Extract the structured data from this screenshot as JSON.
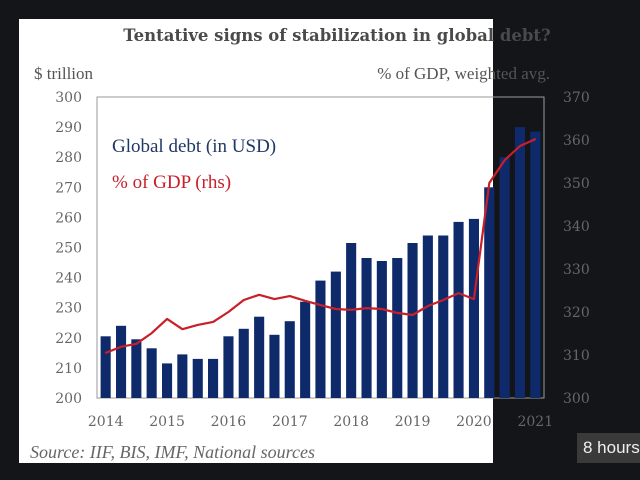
{
  "badge": {
    "text": "8 hours"
  },
  "source": "Source: IIF, BIS, IMF, National sources",
  "colors": {
    "bars": "#0e2a6b",
    "line": "#c8202a",
    "background": "#141519",
    "card": "#ffffff"
  },
  "chart_data": {
    "type": "bar+line",
    "title": "Tentative signs of stabilization in global debt?",
    "ylabel_left": "$ trillion",
    "ylabel_right": "% of GDP, weighted avg.",
    "ylim_left": [
      200,
      300
    ],
    "ylim_right": [
      300,
      370
    ],
    "yticks_left": [
      "300",
      "290",
      "280",
      "270",
      "260",
      "250",
      "240",
      "230",
      "220",
      "210",
      "200"
    ],
    "yticks_right": [
      "370",
      "360",
      "350",
      "340",
      "330",
      "320",
      "310",
      "300"
    ],
    "xtick_labels": [
      "2014",
      "2015",
      "2016",
      "2017",
      "2018",
      "2019",
      "2020",
      "2021"
    ],
    "legend": [
      {
        "name": "Global debt (in USD)",
        "type": "bar",
        "placement": "top-left"
      },
      {
        "name": "% of GDP (rhs)",
        "type": "line",
        "placement": "top-left"
      }
    ],
    "categories": [
      "2014Q1",
      "2014Q2",
      "2014Q3",
      "2014Q4",
      "2015Q1",
      "2015Q2",
      "2015Q3",
      "2015Q4",
      "2016Q1",
      "2016Q2",
      "2016Q3",
      "2016Q4",
      "2017Q1",
      "2017Q2",
      "2017Q3",
      "2017Q4",
      "2018Q1",
      "2018Q2",
      "2018Q3",
      "2018Q4",
      "2019Q1",
      "2019Q2",
      "2019Q3",
      "2019Q4",
      "2020Q1",
      "2020Q2",
      "2020Q3",
      "2020Q4",
      "2021Q1"
    ],
    "series": [
      {
        "name": "Global debt (in USD)",
        "axis": "left",
        "type": "bar",
        "values": [
          220.5,
          224,
          219.5,
          216.5,
          211.5,
          214.5,
          213,
          213,
          220.5,
          223,
          227,
          221,
          225.5,
          232,
          239,
          242,
          251.5,
          246.5,
          245.5,
          246.5,
          251.5,
          254,
          254,
          258.5,
          259.5,
          270,
          280,
          290,
          288.5
        ]
      },
      {
        "name": "% of GDP (rhs)",
        "axis": "right",
        "type": "line",
        "values": [
          310.5,
          311.9,
          312.6,
          315.1,
          318.4,
          316.0,
          317.0,
          317.7,
          320.0,
          322.8,
          324.0,
          323.0,
          323.7,
          322.6,
          321.6,
          320.7,
          320.5,
          320.9,
          320.7,
          319.8,
          319.3,
          321.4,
          322.8,
          324.4,
          323.0,
          350.0,
          355.3,
          358.6,
          360.2
        ]
      }
    ],
    "grid": false
  }
}
